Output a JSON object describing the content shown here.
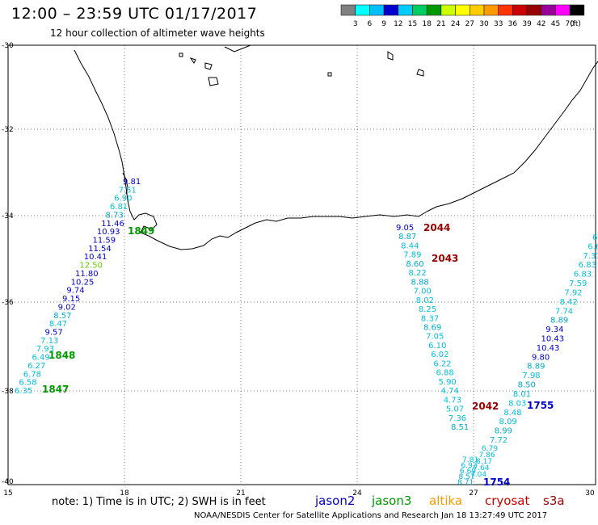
{
  "title": "12:00 – 23:59 UTC 01/17/2017",
  "subtitle": "12 hour collection of altimeter wave heights",
  "footer": "NOAA/NESDIS Center for Satellite Applications and Research   Jan 18 13:27:49 UTC 2017",
  "note": "note: 1) Time is in UTC; 2) SWH is in feet",
  "colorbar": {
    "unit": "(ft)",
    "labels": [
      "3",
      "6",
      "9",
      "12",
      "15",
      "18",
      "21",
      "24",
      "27",
      "30",
      "33",
      "36",
      "39",
      "42",
      "45",
      "70"
    ],
    "colors": [
      "#808080",
      "#00ffff",
      "#00bfff",
      "#0000cd",
      "#00ccff",
      "#00cc66",
      "#009900",
      "#ccff00",
      "#ffff00",
      "#ffcc00",
      "#ff9900",
      "#ff3300",
      "#cc0000",
      "#990000",
      "#990099",
      "#ff00ff",
      "#000000"
    ]
  },
  "axes": {
    "x_ticks": [
      "15",
      "18",
      "21",
      "24",
      "27",
      "30"
    ],
    "y_ticks": [
      "-30",
      "-32",
      "-34",
      "-36",
      "-38",
      "-40"
    ]
  },
  "satellites": [
    {
      "name": "jason2",
      "color": "#0000cd"
    },
    {
      "name": "jason3",
      "color": "#009900"
    },
    {
      "name": "altika",
      "color": "#ff9900"
    },
    {
      "name": "cryosat",
      "color": "#cc0000"
    },
    {
      "name": "s3a",
      "color": "#990000"
    }
  ],
  "tracks": {
    "track1": [
      "9.81",
      "7.51",
      "6.90",
      "6.81",
      "8.73",
      "11.46",
      "10.93",
      "11.59",
      "11.54",
      "10.41",
      "12.50",
      "11.80",
      "10.25",
      "9.74",
      "9.15",
      "9.02",
      "8.57",
      "8.47",
      "9.57",
      "7.13",
      "7.93",
      "6.49",
      "6.27",
      "6.78",
      "6.58",
      "6.35"
    ],
    "track2": [
      "9.05",
      "8.87",
      "8.44",
      "7.89",
      "8.60",
      "8.22",
      "8.88",
      "7.00",
      "8.02",
      "8.25",
      "8.37",
      "8.69",
      "7.05",
      "6.10",
      "6.02",
      "6.22",
      "6.88",
      "5.90",
      "4.74",
      "4.73",
      "5.07",
      "7.36",
      "8.51",
      "7.81",
      "6.92",
      "6.69",
      "8.57",
      "8.71"
    ],
    "track3": [
      "6",
      "6.6",
      "7.31",
      "6.83",
      "6.83",
      "7.59",
      "7.92",
      "8.42",
      "7.74",
      "8.89",
      "9.34",
      "10.43",
      "10.43",
      "9.80",
      "8.89",
      "7.98",
      "8.50",
      "8.01",
      "8.03",
      "8.48",
      "8.09",
      "8.99",
      "7.72",
      "6.79",
      "7.86",
      "8.17",
      "7.64",
      "7.04"
    ]
  },
  "time_labels": [
    {
      "label": "1849",
      "color": "#009900"
    },
    {
      "label": "1848",
      "color": "#009900"
    },
    {
      "label": "1847",
      "color": "#009900"
    },
    {
      "label": "2044",
      "color": "#990000"
    },
    {
      "label": "2043",
      "color": "#990000"
    },
    {
      "label": "2042",
      "color": "#990000"
    },
    {
      "label": "1755",
      "color": "#0000cd"
    },
    {
      "label": "1754",
      "color": "#0000cd"
    }
  ]
}
